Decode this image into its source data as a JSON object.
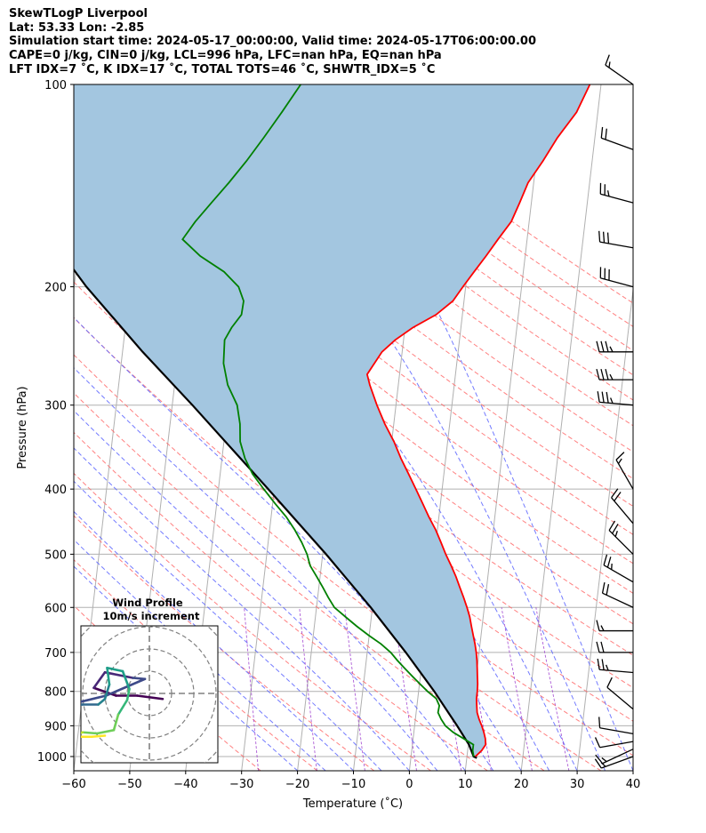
{
  "header": {
    "line1": "SkewTLogP Liverpool",
    "line2": "Lat: 53.33   Lon: -2.85",
    "line3": "Simulation start time: 2024-05-17_00:00:00, Valid time: 2024-05-17T06:00:00.00",
    "line4": "CAPE=0 j/kg, CIN=0 j/kg, LCL=996 hPa, LFC=nan hPa, EQ=nan hPa",
    "line5": "LFT IDX=7 ˚C, K IDX=17 ˚C, TOTAL TOTS=46 ˚C, SHWTR_IDX=5 ˚C"
  },
  "colors": {
    "temperature": "#ff0000",
    "dewpoint": "#008000",
    "parcel": "#000000",
    "cape_fill": "#a3c6e0",
    "dry_adiabat": "#ff6a6a",
    "moist_adiabat": "#5a64ff",
    "mixing_ratio": "#9933cc",
    "isotherm": "#b0b0b0"
  },
  "chart_data": {
    "type": "line",
    "xlabel": "Temperature (˚C)",
    "ylabel": "Pressure (hPa)",
    "xlim": [
      -60,
      40
    ],
    "ylim": [
      1050,
      100
    ],
    "y_scale": "log",
    "x_ticks": [
      -60,
      -50,
      -40,
      -30,
      -20,
      -10,
      0,
      10,
      20,
      30,
      40
    ],
    "y_ticks": [
      1000,
      900,
      800,
      700,
      600,
      500,
      400,
      300,
      200,
      100
    ],
    "grid": true,
    "series": [
      {
        "key": "temperature",
        "points": [
          [
            1000,
            11.5
          ],
          [
            980,
            12.5
          ],
          [
            960,
            13.1
          ],
          [
            940,
            12.9
          ],
          [
            920,
            12.5
          ],
          [
            900,
            12.0
          ],
          [
            880,
            11.4
          ],
          [
            860,
            10.9
          ],
          [
            840,
            10.7
          ],
          [
            820,
            10.5
          ],
          [
            800,
            10.5
          ],
          [
            780,
            10.4
          ],
          [
            760,
            10.2
          ],
          [
            740,
            10.0
          ],
          [
            720,
            9.8
          ],
          [
            700,
            9.5
          ],
          [
            680,
            9.1
          ],
          [
            660,
            8.6
          ],
          [
            640,
            8.1
          ],
          [
            620,
            7.6
          ],
          [
            600,
            6.9
          ],
          [
            580,
            6.1
          ],
          [
            560,
            5.2
          ],
          [
            540,
            4.3
          ],
          [
            520,
            3.2
          ],
          [
            500,
            2.0
          ],
          [
            480,
            0.9
          ],
          [
            460,
            -0.3
          ],
          [
            440,
            -1.8
          ],
          [
            420,
            -3.2
          ],
          [
            400,
            -4.7
          ],
          [
            380,
            -6.3
          ],
          [
            360,
            -8.0
          ],
          [
            340,
            -9.6
          ],
          [
            320,
            -11.6
          ],
          [
            300,
            -13.4
          ],
          [
            280,
            -15.1
          ],
          [
            270,
            -15.8
          ],
          [
            250,
            -13.6
          ],
          [
            240,
            -11.5
          ],
          [
            230,
            -8.6
          ],
          [
            220,
            -4.7
          ],
          [
            210,
            -2.0
          ],
          [
            200,
            -0.5
          ],
          [
            190,
            1.2
          ],
          [
            180,
            3.0
          ],
          [
            170,
            4.8
          ],
          [
            160,
            6.8
          ],
          [
            150,
            7.9
          ],
          [
            140,
            9.0
          ],
          [
            130,
            11.2
          ],
          [
            120,
            13.3
          ],
          [
            110,
            16.2
          ],
          [
            100,
            18.0
          ]
        ]
      },
      {
        "key": "dewpoint",
        "points": [
          [
            1000,
            11.2
          ],
          [
            980,
            10.9
          ],
          [
            960,
            10.9
          ],
          [
            940,
            9.0
          ],
          [
            920,
            7.0
          ],
          [
            900,
            5.5
          ],
          [
            880,
            4.6
          ],
          [
            860,
            3.9
          ],
          [
            840,
            4.0
          ],
          [
            820,
            3.3
          ],
          [
            800,
            1.6
          ],
          [
            780,
            0.1
          ],
          [
            760,
            -1.4
          ],
          [
            740,
            -2.9
          ],
          [
            720,
            -4.4
          ],
          [
            700,
            -5.8
          ],
          [
            680,
            -7.7
          ],
          [
            660,
            -10.1
          ],
          [
            640,
            -12.4
          ],
          [
            620,
            -14.6
          ],
          [
            600,
            -16.8
          ],
          [
            580,
            -18.1
          ],
          [
            560,
            -19.3
          ],
          [
            540,
            -20.6
          ],
          [
            520,
            -22.0
          ],
          [
            500,
            -22.8
          ],
          [
            480,
            -24.0
          ],
          [
            460,
            -25.5
          ],
          [
            440,
            -27.3
          ],
          [
            420,
            -29.6
          ],
          [
            400,
            -31.9
          ],
          [
            380,
            -34.2
          ],
          [
            360,
            -35.9
          ],
          [
            340,
            -37.1
          ],
          [
            320,
            -37.5
          ],
          [
            300,
            -38.4
          ],
          [
            280,
            -40.5
          ],
          [
            260,
            -41.7
          ],
          [
            240,
            -42.0
          ],
          [
            230,
            -41.0
          ],
          [
            220,
            -39.5
          ],
          [
            210,
            -39.4
          ],
          [
            200,
            -40.6
          ],
          [
            190,
            -43.5
          ],
          [
            180,
            -48.1
          ],
          [
            170,
            -51.6
          ],
          [
            160,
            -49.7
          ],
          [
            150,
            -47.2
          ],
          [
            140,
            -44.5
          ],
          [
            130,
            -41.8
          ],
          [
            120,
            -39.2
          ],
          [
            110,
            -36.5
          ],
          [
            100,
            -33.7
          ]
        ]
      },
      {
        "key": "parcel",
        "points": [
          [
            1005,
            11.8
          ],
          [
            1000,
            11.2
          ],
          [
            960,
            10.1
          ],
          [
            900,
            7.6
          ],
          [
            800,
            2.8
          ],
          [
            700,
            -3.1
          ],
          [
            600,
            -10.3
          ],
          [
            500,
            -19.4
          ],
          [
            400,
            -31.1
          ],
          [
            300,
            -46.4
          ],
          [
            250,
            -56.4
          ],
          [
            200,
            -67.8
          ],
          [
            150,
            -80.7
          ],
          [
            100,
            -94.6
          ]
        ]
      }
    ],
    "barbs": [
      {
        "pressure": 1000,
        "speed_kt": 15,
        "direction_deg": 250
      },
      {
        "pressure": 975,
        "speed_kt": 15,
        "direction_deg": 245
      },
      {
        "pressure": 950,
        "speed_kt": 10,
        "direction_deg": 260
      },
      {
        "pressure": 925,
        "speed_kt": 10,
        "direction_deg": 280
      },
      {
        "pressure": 850,
        "speed_kt": 10,
        "direction_deg": 310
      },
      {
        "pressure": 750,
        "speed_kt": 25,
        "direction_deg": 275
      },
      {
        "pressure": 700,
        "speed_kt": 20,
        "direction_deg": 270
      },
      {
        "pressure": 650,
        "speed_kt": 15,
        "direction_deg": 270
      },
      {
        "pressure": 600,
        "speed_kt": 20,
        "direction_deg": 295
      },
      {
        "pressure": 550,
        "speed_kt": 25,
        "direction_deg": 300
      },
      {
        "pressure": 500,
        "speed_kt": 25,
        "direction_deg": 315
      },
      {
        "pressure": 450,
        "speed_kt": 20,
        "direction_deg": 320
      },
      {
        "pressure": 400,
        "speed_kt": 15,
        "direction_deg": 330
      },
      {
        "pressure": 300,
        "speed_kt": 35,
        "direction_deg": 275
      },
      {
        "pressure": 275,
        "speed_kt": 35,
        "direction_deg": 270
      },
      {
        "pressure": 250,
        "speed_kt": 35,
        "direction_deg": 270
      },
      {
        "pressure": 200,
        "speed_kt": 30,
        "direction_deg": 285
      },
      {
        "pressure": 175,
        "speed_kt": 30,
        "direction_deg": 280
      },
      {
        "pressure": 150,
        "speed_kt": 25,
        "direction_deg": 285
      },
      {
        "pressure": 125,
        "speed_kt": 20,
        "direction_deg": 290
      },
      {
        "pressure": 100,
        "speed_kt": 15,
        "direction_deg": 305
      }
    ],
    "hodograph": {
      "title": "Wind Profile",
      "subtitle": "10m/s increment",
      "ring_step_ms": 10,
      "points": [
        [
          1.2,
          -0.5
        ],
        [
          -1.1,
          -0.2
        ],
        [
          -3.0,
          -0.2
        ],
        [
          -5.0,
          0.5
        ],
        [
          -4.0,
          1.9
        ],
        [
          -1.5,
          1.4
        ],
        [
          -0.4,
          1.3
        ],
        [
          -3.9,
          -0.2
        ],
        [
          -8.0,
          -1.2
        ],
        [
          -6.0,
          -1.0
        ],
        [
          -4.6,
          -1.0
        ],
        [
          -4.0,
          -0.5
        ],
        [
          -3.6,
          0.8
        ],
        [
          -3.8,
          2.3
        ],
        [
          -2.4,
          2.0
        ],
        [
          -1.8,
          0.4
        ],
        [
          -2.0,
          -0.6
        ],
        [
          -2.8,
          -1.9
        ],
        [
          -3.2,
          -3.3
        ],
        [
          -4.7,
          -3.6
        ],
        [
          -6.0,
          -3.5
        ],
        [
          -7.1,
          -3.8
        ],
        [
          -6.8,
          -3.9
        ],
        [
          -5.2,
          -3.9
        ],
        [
          -4.0,
          -3.8
        ]
      ]
    }
  }
}
